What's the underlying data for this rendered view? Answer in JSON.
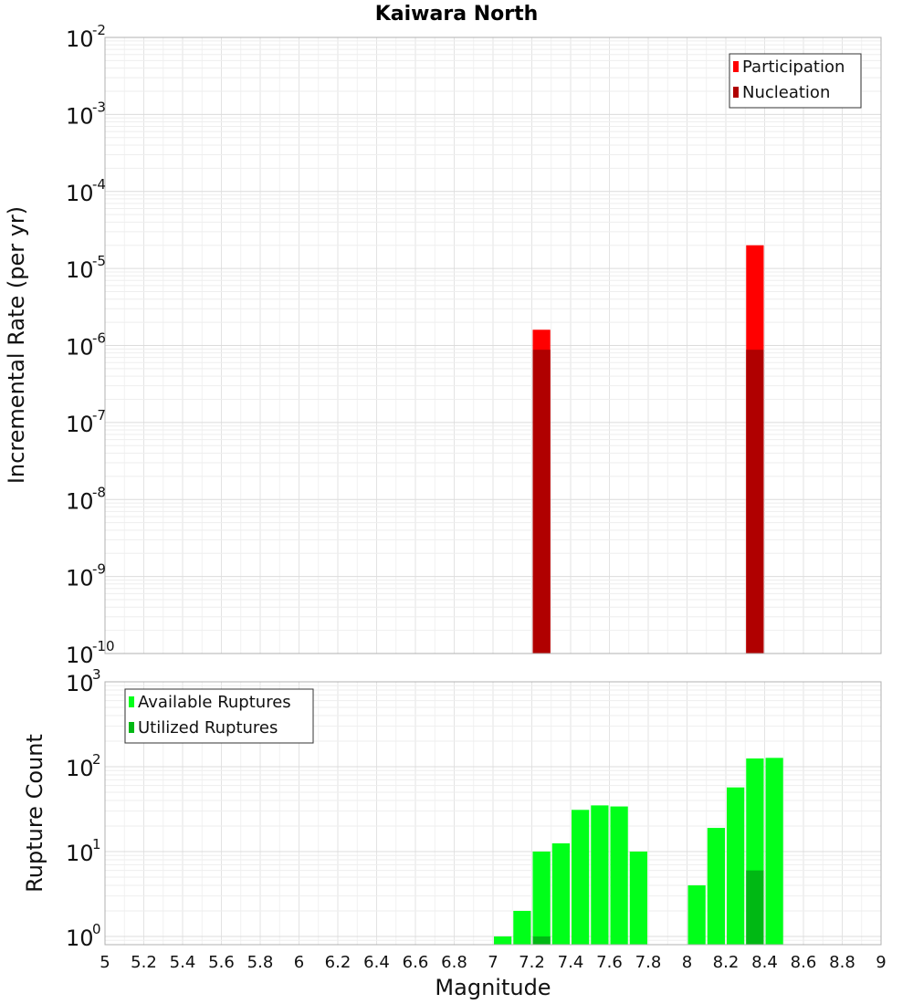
{
  "chart_data": [
    {
      "type": "bar",
      "title": "Kaiwara North",
      "xlabel": "",
      "ylabel": "Incremental Rate (per yr)",
      "yscale": "log",
      "ylim": [
        1e-10,
        0.01
      ],
      "y_ticks": [
        {
          "base": "10",
          "exp": "-10",
          "value": 1e-10
        },
        {
          "base": "10",
          "exp": "-9",
          "value": 1e-09
        },
        {
          "base": "10",
          "exp": "-8",
          "value": 1e-08
        },
        {
          "base": "10",
          "exp": "-7",
          "value": 1e-07
        },
        {
          "base": "10",
          "exp": "-6",
          "value": 1e-06
        },
        {
          "base": "10",
          "exp": "-5",
          "value": 1e-05
        },
        {
          "base": "10",
          "exp": "-4",
          "value": 0.0001
        },
        {
          "base": "10",
          "exp": "-3",
          "value": 0.001
        },
        {
          "base": "10",
          "exp": "-2",
          "value": 0.01
        }
      ],
      "legend_position": "top-right",
      "series": [
        {
          "name": "Participation",
          "color": "#ff0000",
          "x": [
            7.25,
            8.35
          ],
          "values": [
            1.6e-06,
            2e-05
          ]
        },
        {
          "name": "Nucleation",
          "color": "#b00000",
          "x": [
            7.25,
            8.35
          ],
          "values": [
            8.8e-07,
            8.8e-07
          ]
        }
      ]
    },
    {
      "type": "bar",
      "title": "",
      "xlabel": "Magnitude",
      "ylabel": "Rupture Count",
      "yscale": "log",
      "ylim": [
        0.8,
        1000
      ],
      "xlim": [
        5,
        9
      ],
      "x_tick_labels": [
        "5",
        "5.2",
        "5.4",
        "5.6",
        "5.8",
        "6",
        "6.2",
        "6.4",
        "6.6",
        "6.8",
        "7",
        "7.2",
        "7.4",
        "7.6",
        "7.8",
        "8",
        "8.2",
        "8.4",
        "8.6",
        "8.8",
        "9"
      ],
      "y_ticks": [
        {
          "base": "10",
          "exp": "0",
          "value": 1
        },
        {
          "base": "10",
          "exp": "1",
          "value": 10
        },
        {
          "base": "10",
          "exp": "2",
          "value": 100
        },
        {
          "base": "10",
          "exp": "3",
          "value": 1000
        }
      ],
      "legend_position": "top-left",
      "series": [
        {
          "name": "Available Ruptures",
          "color": "#00ff19",
          "x": [
            7.05,
            7.15,
            7.25,
            7.35,
            7.45,
            7.55,
            7.65,
            7.75,
            8.05,
            8.15,
            8.25,
            8.35,
            8.45
          ],
          "values": [
            1,
            2,
            10,
            12.5,
            31,
            35,
            34,
            10,
            4,
            19,
            57,
            125,
            127
          ]
        },
        {
          "name": "Utilized Ruptures",
          "color": "#00b814",
          "x": [
            7.25,
            8.35
          ],
          "values": [
            1,
            6
          ]
        }
      ]
    }
  ]
}
